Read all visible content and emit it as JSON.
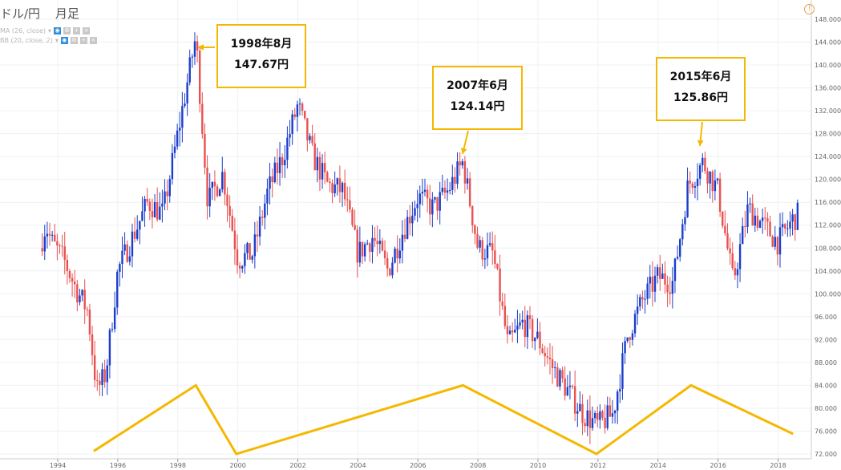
{
  "header": {
    "pair": "ドル/円",
    "interval": "月足"
  },
  "indicators": [
    {
      "label": "MA (26, close)"
    },
    {
      "label": "BB (20, close, 2)"
    }
  ],
  "annotations": [
    {
      "date": "1998年8月",
      "price": "147.67円"
    },
    {
      "date": "2007年6月",
      "price": "124.14円"
    },
    {
      "date": "2015年6月",
      "price": "125.86円"
    }
  ],
  "chart_data": {
    "type": "candlestick",
    "ylim": [
      72,
      148
    ],
    "xlim": [
      1993.0,
      2019.0
    ],
    "y_ticks": [
      "72.000",
      "76.000",
      "80.000",
      "84.000",
      "88.000",
      "92.000",
      "96.000",
      "100.000",
      "104.000",
      "108.000",
      "112.000",
      "116.000",
      "120.000",
      "124.000",
      "128.000",
      "132.000",
      "136.000",
      "140.000",
      "144.000",
      "148.000"
    ],
    "x_ticks": [
      "1994",
      "1996",
      "1998",
      "2000",
      "2002",
      "2004",
      "2006",
      "2008",
      "2010",
      "2012",
      "2014",
      "2016",
      "2018"
    ],
    "grid": true,
    "up_color": "#1a3dcc",
    "down_color": "#e8514f",
    "trend_color": "#f5b800",
    "price_path": [
      [
        1993.4,
        108
      ],
      [
        1993.6,
        112
      ],
      [
        1993.8,
        109
      ],
      [
        1994.2,
        106
      ],
      [
        1994.6,
        101
      ],
      [
        1995.0,
        97
      ],
      [
        1995.3,
        83
      ],
      [
        1995.6,
        86
      ],
      [
        1996.0,
        104
      ],
      [
        1996.5,
        110
      ],
      [
        1997.0,
        116
      ],
      [
        1997.5,
        114
      ],
      [
        1998.0,
        128
      ],
      [
        1998.6,
        145
      ],
      [
        1999.0,
        116
      ],
      [
        1999.5,
        121
      ],
      [
        2000.0,
        106
      ],
      [
        2000.5,
        107
      ],
      [
        2001.0,
        118
      ],
      [
        2001.5,
        124
      ],
      [
        2002.0,
        133
      ],
      [
        2002.5,
        124
      ],
      [
        2003.0,
        119
      ],
      [
        2003.5,
        118
      ],
      [
        2004.0,
        107
      ],
      [
        2004.5,
        110
      ],
      [
        2005.0,
        104
      ],
      [
        2005.5,
        111
      ],
      [
        2006.0,
        117
      ],
      [
        2006.5,
        115
      ],
      [
        2007.0,
        118
      ],
      [
        2007.5,
        123
      ],
      [
        2008.0,
        108
      ],
      [
        2008.5,
        107
      ],
      [
        2009.0,
        91
      ],
      [
        2009.5,
        95
      ],
      [
        2010.0,
        92
      ],
      [
        2010.5,
        87
      ],
      [
        2011.0,
        83
      ],
      [
        2011.5,
        79
      ],
      [
        2012.0,
        77
      ],
      [
        2012.5,
        79
      ],
      [
        2013.0,
        93
      ],
      [
        2013.5,
        99
      ],
      [
        2014.0,
        103
      ],
      [
        2014.5,
        102
      ],
      [
        2015.0,
        119
      ],
      [
        2015.5,
        123
      ],
      [
        2016.0,
        118
      ],
      [
        2016.5,
        102
      ],
      [
        2017.0,
        115
      ],
      [
        2017.5,
        112
      ],
      [
        2018.0,
        109
      ],
      [
        2018.5,
        113
      ],
      [
        2018.7,
        114
      ]
    ],
    "trend_line": [
      {
        "x": 1995.2,
        "y": 72.5
      },
      {
        "x": 1998.6,
        "y": 84
      },
      {
        "x": 1999.95,
        "y": 72
      },
      {
        "x": 2007.5,
        "y": 84
      },
      {
        "x": 2011.95,
        "y": 72
      },
      {
        "x": 2015.1,
        "y": 84
      },
      {
        "x": 2018.5,
        "y": 75.5
      }
    ]
  }
}
